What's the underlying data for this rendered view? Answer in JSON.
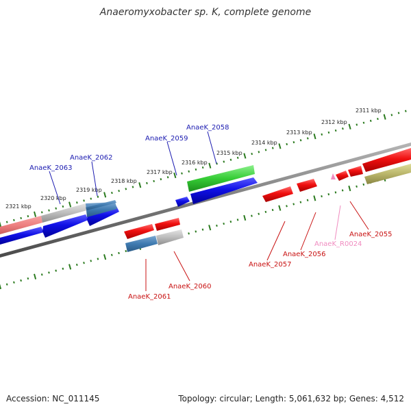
{
  "title": "Anaeromyxobacter sp. K, complete genome",
  "footer": {
    "accession": "Accession: NC_011145",
    "summary": "Topology: circular; Length: 5,061,632 bp; Genes: 4,512"
  },
  "colors": {
    "backbone": "#7a7a7a",
    "tick": "#2a7a1e",
    "forward_gene": "#1010e0",
    "reverse_gene": "#e01010",
    "label_forward": "#1a1ab0",
    "label_reverse": "#c81010",
    "rna": "#f08cc0"
  },
  "scale_markers": [
    {
      "label": "2321 kbp",
      "kbp": 2321
    },
    {
      "label": "2320 kbp",
      "kbp": 2320
    },
    {
      "label": "2319 kbp",
      "kbp": 2319
    },
    {
      "label": "2318 kbp",
      "kbp": 2318
    },
    {
      "label": "2317 kbp",
      "kbp": 2317
    },
    {
      "label": "2316 kbp",
      "kbp": 2316
    },
    {
      "label": "2315 kbp",
      "kbp": 2315
    },
    {
      "label": "2314 kbp",
      "kbp": 2314
    },
    {
      "label": "2313 kbp",
      "kbp": 2313
    },
    {
      "label": "2312 kbp",
      "kbp": 2312
    },
    {
      "label": "2311 kbp",
      "kbp": 2311
    }
  ],
  "gene_labels": [
    {
      "id": "AnaeK_2063",
      "strand": "forward"
    },
    {
      "id": "AnaeK_2062",
      "strand": "forward"
    },
    {
      "id": "AnaeK_2059",
      "strand": "forward"
    },
    {
      "id": "AnaeK_2058",
      "strand": "forward"
    },
    {
      "id": "AnaeK_2061",
      "strand": "reverse"
    },
    {
      "id": "AnaeK_2060",
      "strand": "reverse"
    },
    {
      "id": "AnaeK_2057",
      "strand": "reverse"
    },
    {
      "id": "AnaeK_2056",
      "strand": "reverse"
    },
    {
      "id": "AnaeK_R0024",
      "strand": "reverse"
    },
    {
      "id": "AnaeK_2055",
      "strand": "reverse"
    }
  ]
}
